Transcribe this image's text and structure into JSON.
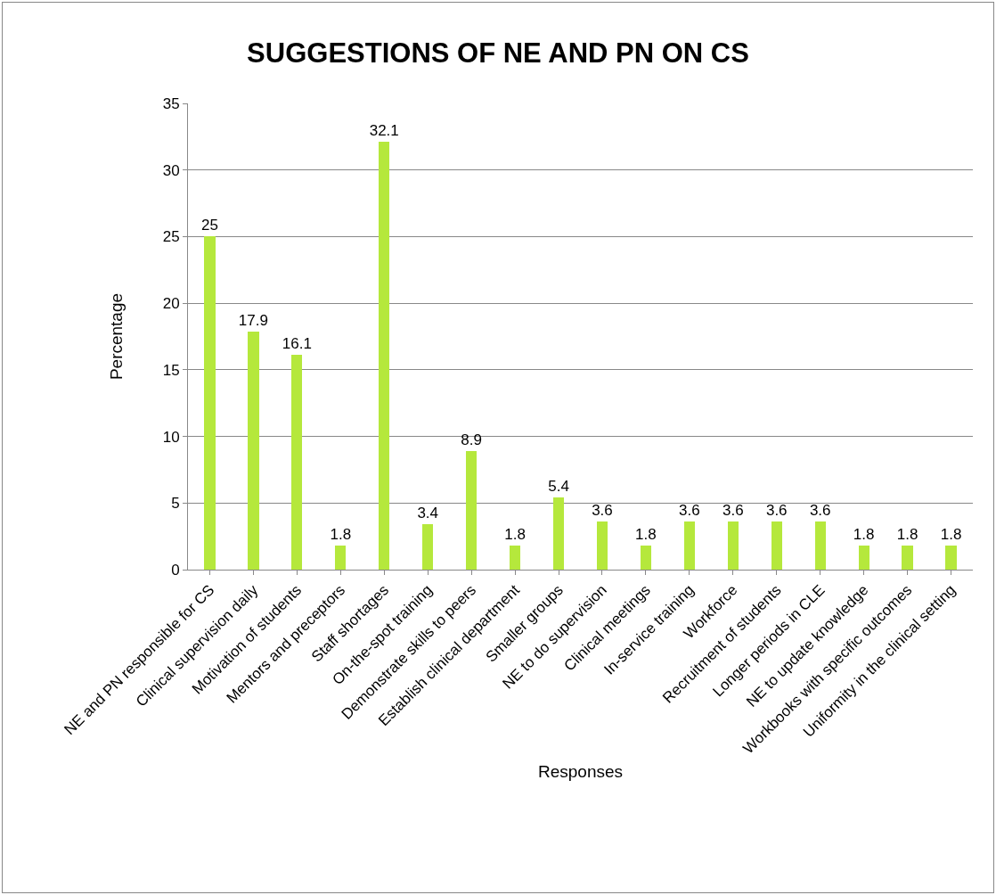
{
  "chart_data": {
    "type": "bar",
    "title": "SUGGESTIONS OF NE AND PN ON CS",
    "xlabel": "Responses",
    "ylabel": "Percentage",
    "categories": [
      "NE and PN responsible for CS",
      "Clinical supervision daily",
      "Motivation of students",
      "Mentors and preceptors",
      "Staff shortages",
      "On-the-spot training",
      "Demonstrate skills to peers",
      "Establish clinical department",
      "Smaller groups",
      "NE to do supervision",
      "Clinical meetings",
      "In-service training",
      "Workforce",
      "Recruitment of students",
      "Longer periods in CLE",
      "NE to update knowledge",
      "Workbooks with specific outcomes",
      "Uniformity in the clinical setting"
    ],
    "values": [
      25,
      17.9,
      16.1,
      1.8,
      32.1,
      3.4,
      8.9,
      1.8,
      5.4,
      3.6,
      1.8,
      3.6,
      3.6,
      3.6,
      3.6,
      1.8,
      1.8,
      1.8
    ],
    "color": "#b5e83c",
    "ylim": [
      0,
      35
    ],
    "yticks": [
      0,
      5,
      10,
      15,
      20,
      25,
      30,
      35
    ],
    "grid": "y",
    "data_labels": true
  }
}
